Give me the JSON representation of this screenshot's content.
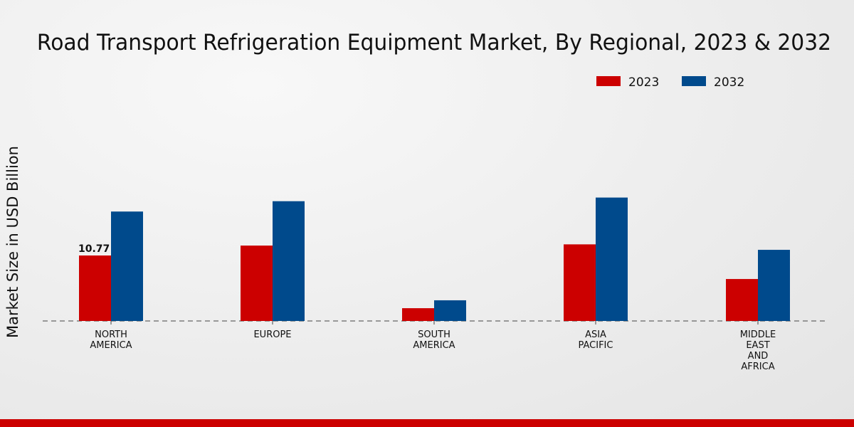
{
  "chart_data": {
    "type": "bar",
    "title": "Road Transport Refrigeration Equipment Market, By Regional, 2023 & 2032",
    "xlabel": "",
    "ylabel": "Market Size in USD Billion",
    "categories": [
      [
        "NORTH",
        "AMERICA"
      ],
      [
        "EUROPE"
      ],
      [
        "SOUTH",
        "AMERICA"
      ],
      [
        "ASIA",
        "PACIFIC"
      ],
      [
        "MIDDLE",
        "EAST",
        "AND",
        "AFRICA"
      ]
    ],
    "series": [
      {
        "name": "2023",
        "color": "#cc0000",
        "values": [
          10.77,
          12.4,
          2.1,
          12.6,
          6.9
        ]
      },
      {
        "name": "2032",
        "color": "#004a8c",
        "values": [
          18.0,
          19.7,
          3.4,
          20.3,
          11.7
        ]
      }
    ],
    "data_labels": [
      {
        "series": 0,
        "index": 0,
        "text": "10.77"
      }
    ],
    "ylim": [
      0,
      24
    ],
    "grid": false,
    "legend": "top-right"
  }
}
